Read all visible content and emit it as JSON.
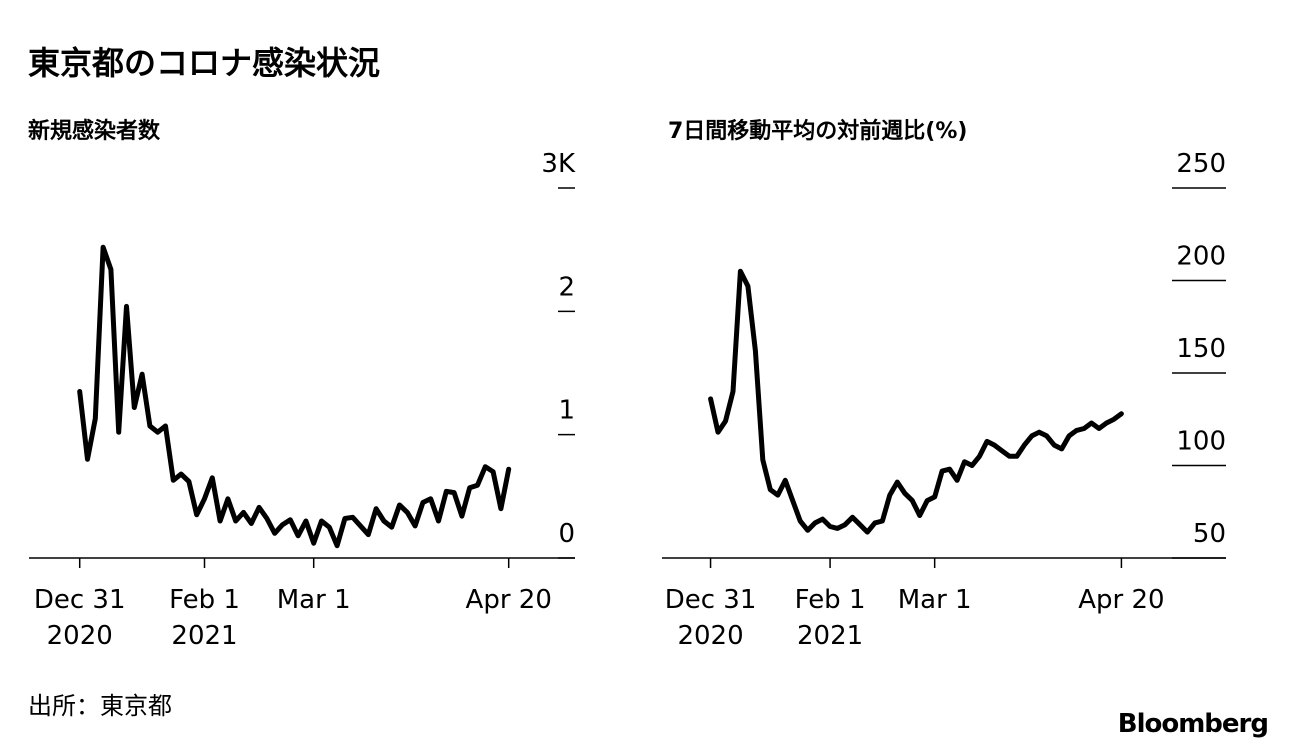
{
  "title": "東京都のコロナ感染状況",
  "chart_data": [
    {
      "type": "line",
      "title": "新規感染者数",
      "color": "#000000",
      "x": [
        "2020-12-31",
        "2021-01-02",
        "2021-01-04",
        "2021-01-06",
        "2021-01-08",
        "2021-01-10",
        "2021-01-12",
        "2021-01-14",
        "2021-01-16",
        "2021-01-18",
        "2021-01-20",
        "2021-01-22",
        "2021-01-24",
        "2021-01-26",
        "2021-01-28",
        "2021-01-30",
        "2021-02-01",
        "2021-02-03",
        "2021-02-05",
        "2021-02-07",
        "2021-02-09",
        "2021-02-11",
        "2021-02-13",
        "2021-02-15",
        "2021-02-17",
        "2021-02-19",
        "2021-02-21",
        "2021-02-23",
        "2021-02-25",
        "2021-02-27",
        "2021-03-01",
        "2021-03-03",
        "2021-03-05",
        "2021-03-07",
        "2021-03-09",
        "2021-03-11",
        "2021-03-13",
        "2021-03-15",
        "2021-03-17",
        "2021-03-19",
        "2021-03-21",
        "2021-03-23",
        "2021-03-25",
        "2021-03-27",
        "2021-03-29",
        "2021-03-31",
        "2021-04-02",
        "2021-04-04",
        "2021-04-06",
        "2021-04-08",
        "2021-04-10",
        "2021-04-12",
        "2021-04-14",
        "2021-04-16",
        "2021-04-18",
        "2021-04-20"
      ],
      "values": [
        1350,
        800,
        1130,
        2520,
        2340,
        1020,
        2040,
        1220,
        1490,
        1070,
        1020,
        1070,
        630,
        680,
        620,
        350,
        480,
        650,
        300,
        480,
        300,
        370,
        280,
        410,
        320,
        200,
        270,
        310,
        180,
        300,
        120,
        300,
        250,
        100,
        320,
        330,
        260,
        190,
        400,
        300,
        250,
        430,
        370,
        260,
        450,
        480,
        300,
        540,
        530,
        340,
        570,
        590,
        740,
        700,
        400,
        720
      ],
      "xlim": [
        "2020-12-18",
        "2021-05-07"
      ],
      "xticks": [
        {
          "value": "2020-12-31",
          "label": [
            "Dec 31",
            "2020"
          ]
        },
        {
          "value": "2021-02-01",
          "label": [
            "Feb 1",
            "2021"
          ]
        },
        {
          "value": "2021-03-01",
          "label": [
            "Mar 1"
          ]
        },
        {
          "value": "2021-04-20",
          "label": [
            "Apr 20"
          ]
        }
      ],
      "ylim": [
        0,
        3000
      ],
      "yticks": [
        0,
        {
          "value": 1000,
          "label": "1"
        },
        {
          "value": 2000,
          "label": "2"
        },
        {
          "value": 3000,
          "label": "3K"
        }
      ]
    },
    {
      "type": "line",
      "title": "7日間移動平均の対前週比(%)",
      "color": "#000000",
      "x": [
        "2020-12-31",
        "2021-01-02",
        "2021-01-04",
        "2021-01-06",
        "2021-01-08",
        "2021-01-10",
        "2021-01-12",
        "2021-01-14",
        "2021-01-16",
        "2021-01-18",
        "2021-01-20",
        "2021-01-22",
        "2021-01-24",
        "2021-01-26",
        "2021-01-28",
        "2021-01-30",
        "2021-02-01",
        "2021-02-03",
        "2021-02-05",
        "2021-02-07",
        "2021-02-09",
        "2021-02-11",
        "2021-02-13",
        "2021-02-15",
        "2021-02-17",
        "2021-02-19",
        "2021-02-21",
        "2021-02-23",
        "2021-02-25",
        "2021-02-27",
        "2021-03-01",
        "2021-03-03",
        "2021-03-05",
        "2021-03-07",
        "2021-03-09",
        "2021-03-11",
        "2021-03-13",
        "2021-03-15",
        "2021-03-17",
        "2021-03-19",
        "2021-03-21",
        "2021-03-23",
        "2021-03-25",
        "2021-03-27",
        "2021-03-29",
        "2021-03-31",
        "2021-04-02",
        "2021-04-04",
        "2021-04-06",
        "2021-04-08",
        "2021-04-10",
        "2021-04-12",
        "2021-04-14",
        "2021-04-16",
        "2021-04-18",
        "2021-04-20"
      ],
      "values": [
        136,
        118,
        124,
        140,
        205,
        197,
        162,
        103,
        87,
        84,
        92,
        81,
        70,
        65,
        69,
        71,
        67,
        66,
        68,
        72,
        68,
        64,
        69,
        70,
        84,
        91,
        85,
        81,
        73,
        81,
        83,
        97,
        98,
        92,
        102,
        100,
        105,
        113,
        111,
        108,
        105,
        105,
        111,
        116,
        118,
        116,
        111,
        109,
        116,
        119,
        120,
        123,
        120,
        123,
        125,
        128
      ],
      "xlim": [
        "2020-12-18",
        "2021-05-18"
      ],
      "xticks": [
        {
          "value": "2020-12-31",
          "label": [
            "Dec 31",
            "2020"
          ]
        },
        {
          "value": "2021-02-01",
          "label": [
            "Feb 1",
            "2021"
          ]
        },
        {
          "value": "2021-03-01",
          "label": [
            "Mar 1"
          ]
        },
        {
          "value": "2021-04-20",
          "label": [
            "Apr 20"
          ]
        }
      ],
      "ylim": [
        50,
        250
      ],
      "yticks": [
        50,
        100,
        150,
        200,
        250
      ]
    }
  ],
  "source": "出所：東京都",
  "logo": "Bloomberg"
}
